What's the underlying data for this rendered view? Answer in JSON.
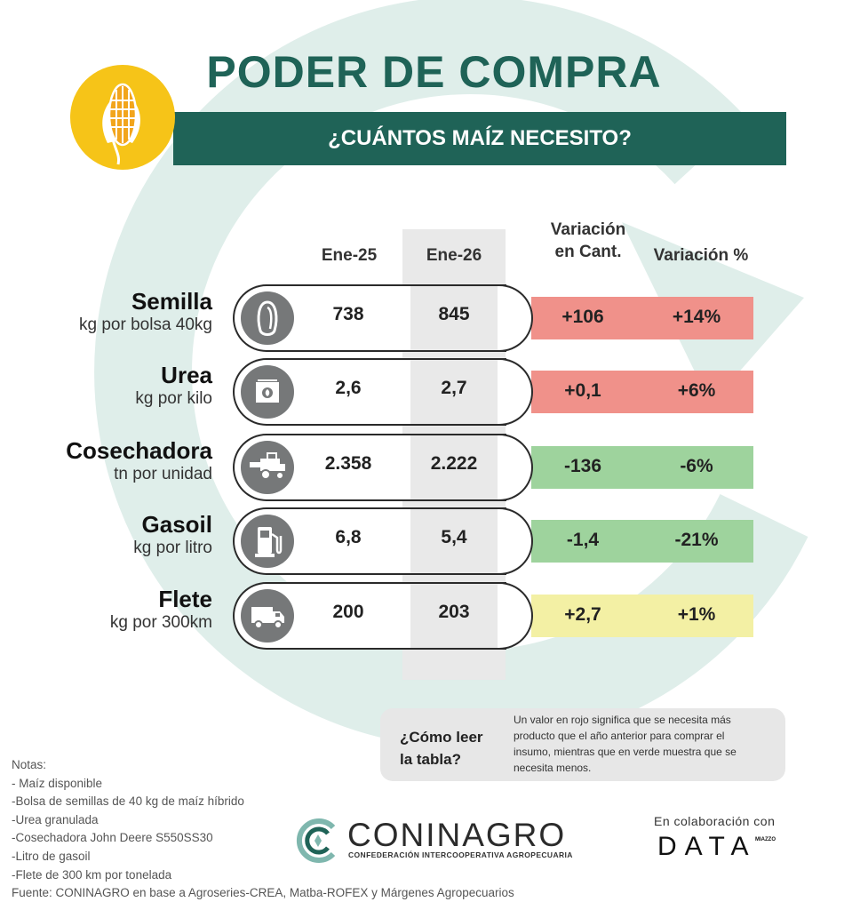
{
  "header": {
    "title": "PODER DE COMPRA",
    "subtitle": "¿CUÁNTOS MAÍZ NECESITO?"
  },
  "columns": {
    "ene25": "Ene-25",
    "ene26": "Ene-26",
    "var_cant_line1": "Variación",
    "var_cant_line2": "en Cant.",
    "var_pct": "Variación %"
  },
  "rows": [
    {
      "name": "Semilla",
      "unit": "kg por bolsa 40kg",
      "icon": "seed-icon",
      "ene25": "738",
      "ene26": "845",
      "var_cant": "+106",
      "var_pct": "+14%",
      "status": "red"
    },
    {
      "name": "Urea",
      "unit": "kg por kilo",
      "icon": "fertilizer-bag-icon",
      "ene25": "2,6",
      "ene26": "2,7",
      "var_cant": "+0,1",
      "var_pct": "+6%",
      "status": "red"
    },
    {
      "name": "Cosechadora",
      "unit": "tn por unidad",
      "icon": "harvester-icon",
      "ene25": "2.358",
      "ene26": "2.222",
      "var_cant": "-136",
      "var_pct": "-6%",
      "status": "green"
    },
    {
      "name": "Gasoil",
      "unit": "kg por litro",
      "icon": "fuel-pump-icon",
      "ene25": "6,8",
      "ene26": "5,4",
      "var_cant": "-1,4",
      "var_pct": "-21%",
      "status": "green"
    },
    {
      "name": "Flete",
      "unit": "kg por 300km",
      "icon": "truck-icon",
      "ene25": "200",
      "ene26": "203",
      "var_cant": "+2,7",
      "var_pct": "+1%",
      "status": "yellow"
    }
  ],
  "colors": {
    "brand": "#1f6357",
    "corn_circle": "#f6c418",
    "red": "#f0918a",
    "green": "#9ed39d",
    "yellow": "#f3f0a4",
    "ring": "#dfeeea"
  },
  "howto": {
    "question_line1": "¿Cómo leer",
    "question_line2": "la tabla?",
    "answer_line1": "Un valor en rojo significa que se necesita más",
    "answer_line2": "producto que el año anterior para comprar el",
    "answer_line3": "insumo, mientras que en verde muestra que se",
    "answer_line4": "necesita menos."
  },
  "notes": [
    "Notas:",
    "- Maíz disponible",
    "-Bolsa de semillas de 40 kg de maíz híbrido",
    "-Urea granulada",
    "-Cosechadora John Deere S550SS30",
    "-Litro de gasoil",
    "-Flete de 300 km por tonelada",
    "Fuente: CONINAGRO en base a Agroseries-CREA, Matba-ROFEX y Márgenes Agropecuarios"
  ],
  "footer": {
    "logo_name": "CONINAGRO",
    "logo_sub": "CONFEDERACIÓN INTERCOOPERATIVA AGROPECUARIA",
    "collab": "En colaboración con",
    "data_logo": "DATA",
    "data_sup": "MIAZZO"
  }
}
